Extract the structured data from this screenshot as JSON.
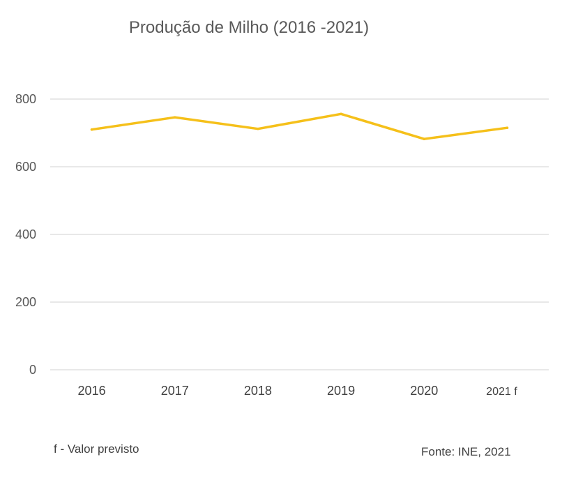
{
  "chart_data": {
    "type": "line",
    "title": "Produção de Milho (2016 -2021)",
    "categories": [
      "2016",
      "2017",
      "2018",
      "2019",
      "2020",
      "2021 f"
    ],
    "series": [
      {
        "name": "Produção de Milho",
        "values": [
          710,
          746,
          712,
          756,
          682,
          715
        ]
      }
    ],
    "xlabel": "",
    "ylabel": "",
    "ylim": [
      0,
      800
    ],
    "yticks": [
      0,
      200,
      400,
      600,
      800
    ],
    "grid": true,
    "line_color": "#F5C01A"
  },
  "footnote": "f - Valor previsto",
  "source": "Fonte: INE, 2021"
}
